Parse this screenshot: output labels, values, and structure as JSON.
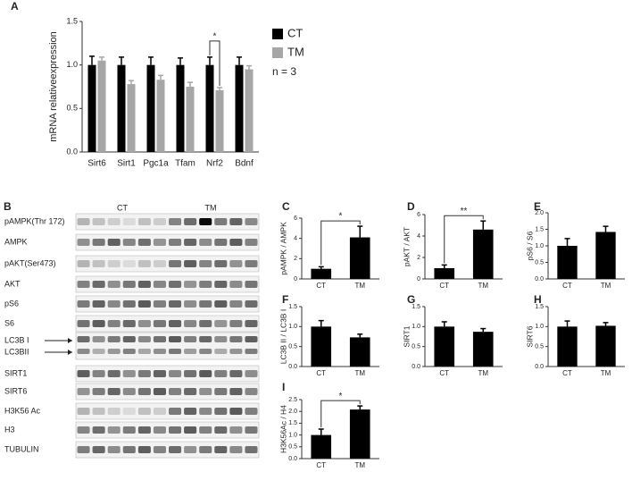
{
  "chart_data": [
    {
      "type": "bar",
      "panel": "A",
      "ylabel": "mRNA relativeexpression",
      "categories": [
        "Sirt6",
        "Sirt1",
        "Pgc1a",
        "Tfam",
        "Nrf2",
        "Bdnf"
      ],
      "series": [
        {
          "name": "CT",
          "color": "#000000",
          "values": [
            1.0,
            1.0,
            1.0,
            1.0,
            1.0,
            1.0
          ],
          "errors": [
            0.1,
            0.09,
            0.09,
            0.08,
            0.09,
            0.09
          ]
        },
        {
          "name": "TM",
          "color": "#a6a6a6",
          "values": [
            1.05,
            0.78,
            0.83,
            0.75,
            0.71,
            0.95
          ],
          "errors": [
            0.04,
            0.04,
            0.05,
            0.05,
            0.03,
            0.04
          ]
        }
      ],
      "ylim": [
        0,
        1.5
      ],
      "yticks": [
        {
          "value": 0,
          "label": "0.0"
        },
        0.5,
        {
          "value": 1,
          "label": "1.0"
        },
        1.5
      ],
      "annotation": "*",
      "note": "n = 3"
    },
    {
      "type": "bar",
      "panel": "C",
      "ylabel": "pAMPK / AMPK",
      "categories": [
        "CT",
        "TM"
      ],
      "color": "#000000",
      "values": [
        1.0,
        4.1
      ],
      "errors": [
        0.2,
        1.1
      ],
      "ylim": [
        0,
        6
      ],
      "yticks": [
        0,
        2,
        4,
        6
      ],
      "annotation": "*"
    },
    {
      "type": "bar",
      "panel": "D",
      "ylabel": "pAKT / AKT",
      "categories": [
        "CT",
        "TM"
      ],
      "color": "#000000",
      "values": [
        1.0,
        4.6
      ],
      "errors": [
        0.3,
        0.8
      ],
      "ylim": [
        0,
        6
      ],
      "yticks": [
        0,
        2,
        4,
        6
      ],
      "annotation": "**"
    },
    {
      "type": "bar",
      "panel": "E",
      "ylabel": "pS6 / S6",
      "categories": [
        "CT",
        "TM"
      ],
      "color": "#000000",
      "values": [
        1.0,
        1.42
      ],
      "errors": [
        0.22,
        0.17
      ],
      "ylim": [
        0,
        2
      ],
      "yticks": [
        {
          "value": 0,
          "label": "0.0"
        },
        0.5,
        {
          "value": 1,
          "label": "1.0"
        },
        1.5,
        {
          "value": 2,
          "label": "2.0"
        }
      ]
    },
    {
      "type": "bar",
      "panel": "F",
      "ylabel": "LC3B II / LC3B I",
      "categories": [
        "CT",
        "TM"
      ],
      "color": "#000000",
      "values": [
        1.0,
        0.73
      ],
      "errors": [
        0.15,
        0.08
      ],
      "ylim": [
        0,
        1.5
      ],
      "yticks": [
        {
          "value": 0,
          "label": "0.0"
        },
        0.5,
        {
          "value": 1,
          "label": "1.0"
        },
        1.5
      ]
    },
    {
      "type": "bar",
      "panel": "G",
      "ylabel": "SIRT1",
      "categories": [
        "CT",
        "TM"
      ],
      "color": "#000000",
      "values": [
        1.0,
        0.87
      ],
      "errors": [
        0.12,
        0.08
      ],
      "ylim": [
        0,
        1.5
      ],
      "yticks": [
        {
          "value": 0,
          "label": "0.0"
        },
        0.5,
        {
          "value": 1,
          "label": "1.0"
        },
        1.5
      ]
    },
    {
      "type": "bar",
      "panel": "H",
      "ylabel": "SIRT6",
      "categories": [
        "CT",
        "TM"
      ],
      "color": "#000000",
      "values": [
        1.0,
        1.02
      ],
      "errors": [
        0.14,
        0.08
      ],
      "ylim": [
        0,
        1.5
      ],
      "yticks": [
        {
          "value": 0,
          "label": "0.0"
        },
        0.5,
        {
          "value": 1,
          "label": "1.0"
        },
        1.5
      ]
    },
    {
      "type": "bar",
      "panel": "I",
      "ylabel": "H3K56Ac / H4",
      "categories": [
        "CT",
        "TM"
      ],
      "color": "#000000",
      "values": [
        1.0,
        2.08
      ],
      "errors": [
        0.25,
        0.15
      ],
      "ylim": [
        0,
        2.5
      ],
      "yticks": [
        {
          "value": 0,
          "label": "0.0"
        },
        0.5,
        {
          "value": 1,
          "label": "1.0"
        },
        1.5,
        {
          "value": 2,
          "label": "2.0"
        },
        2.5
      ],
      "annotation": "*"
    }
  ],
  "blot": {
    "panel": "B",
    "groups": [
      "CT",
      "TM"
    ],
    "rows": [
      "pAMPK(Thr 172)",
      "AMPK",
      "pAKT(Ser473)",
      "AKT",
      "pS6",
      "S6",
      "LC3B I",
      "LC3BII",
      "SIRT1",
      "SIRT6",
      "H3K56 Ac",
      "H3",
      "TUBULIN"
    ]
  }
}
